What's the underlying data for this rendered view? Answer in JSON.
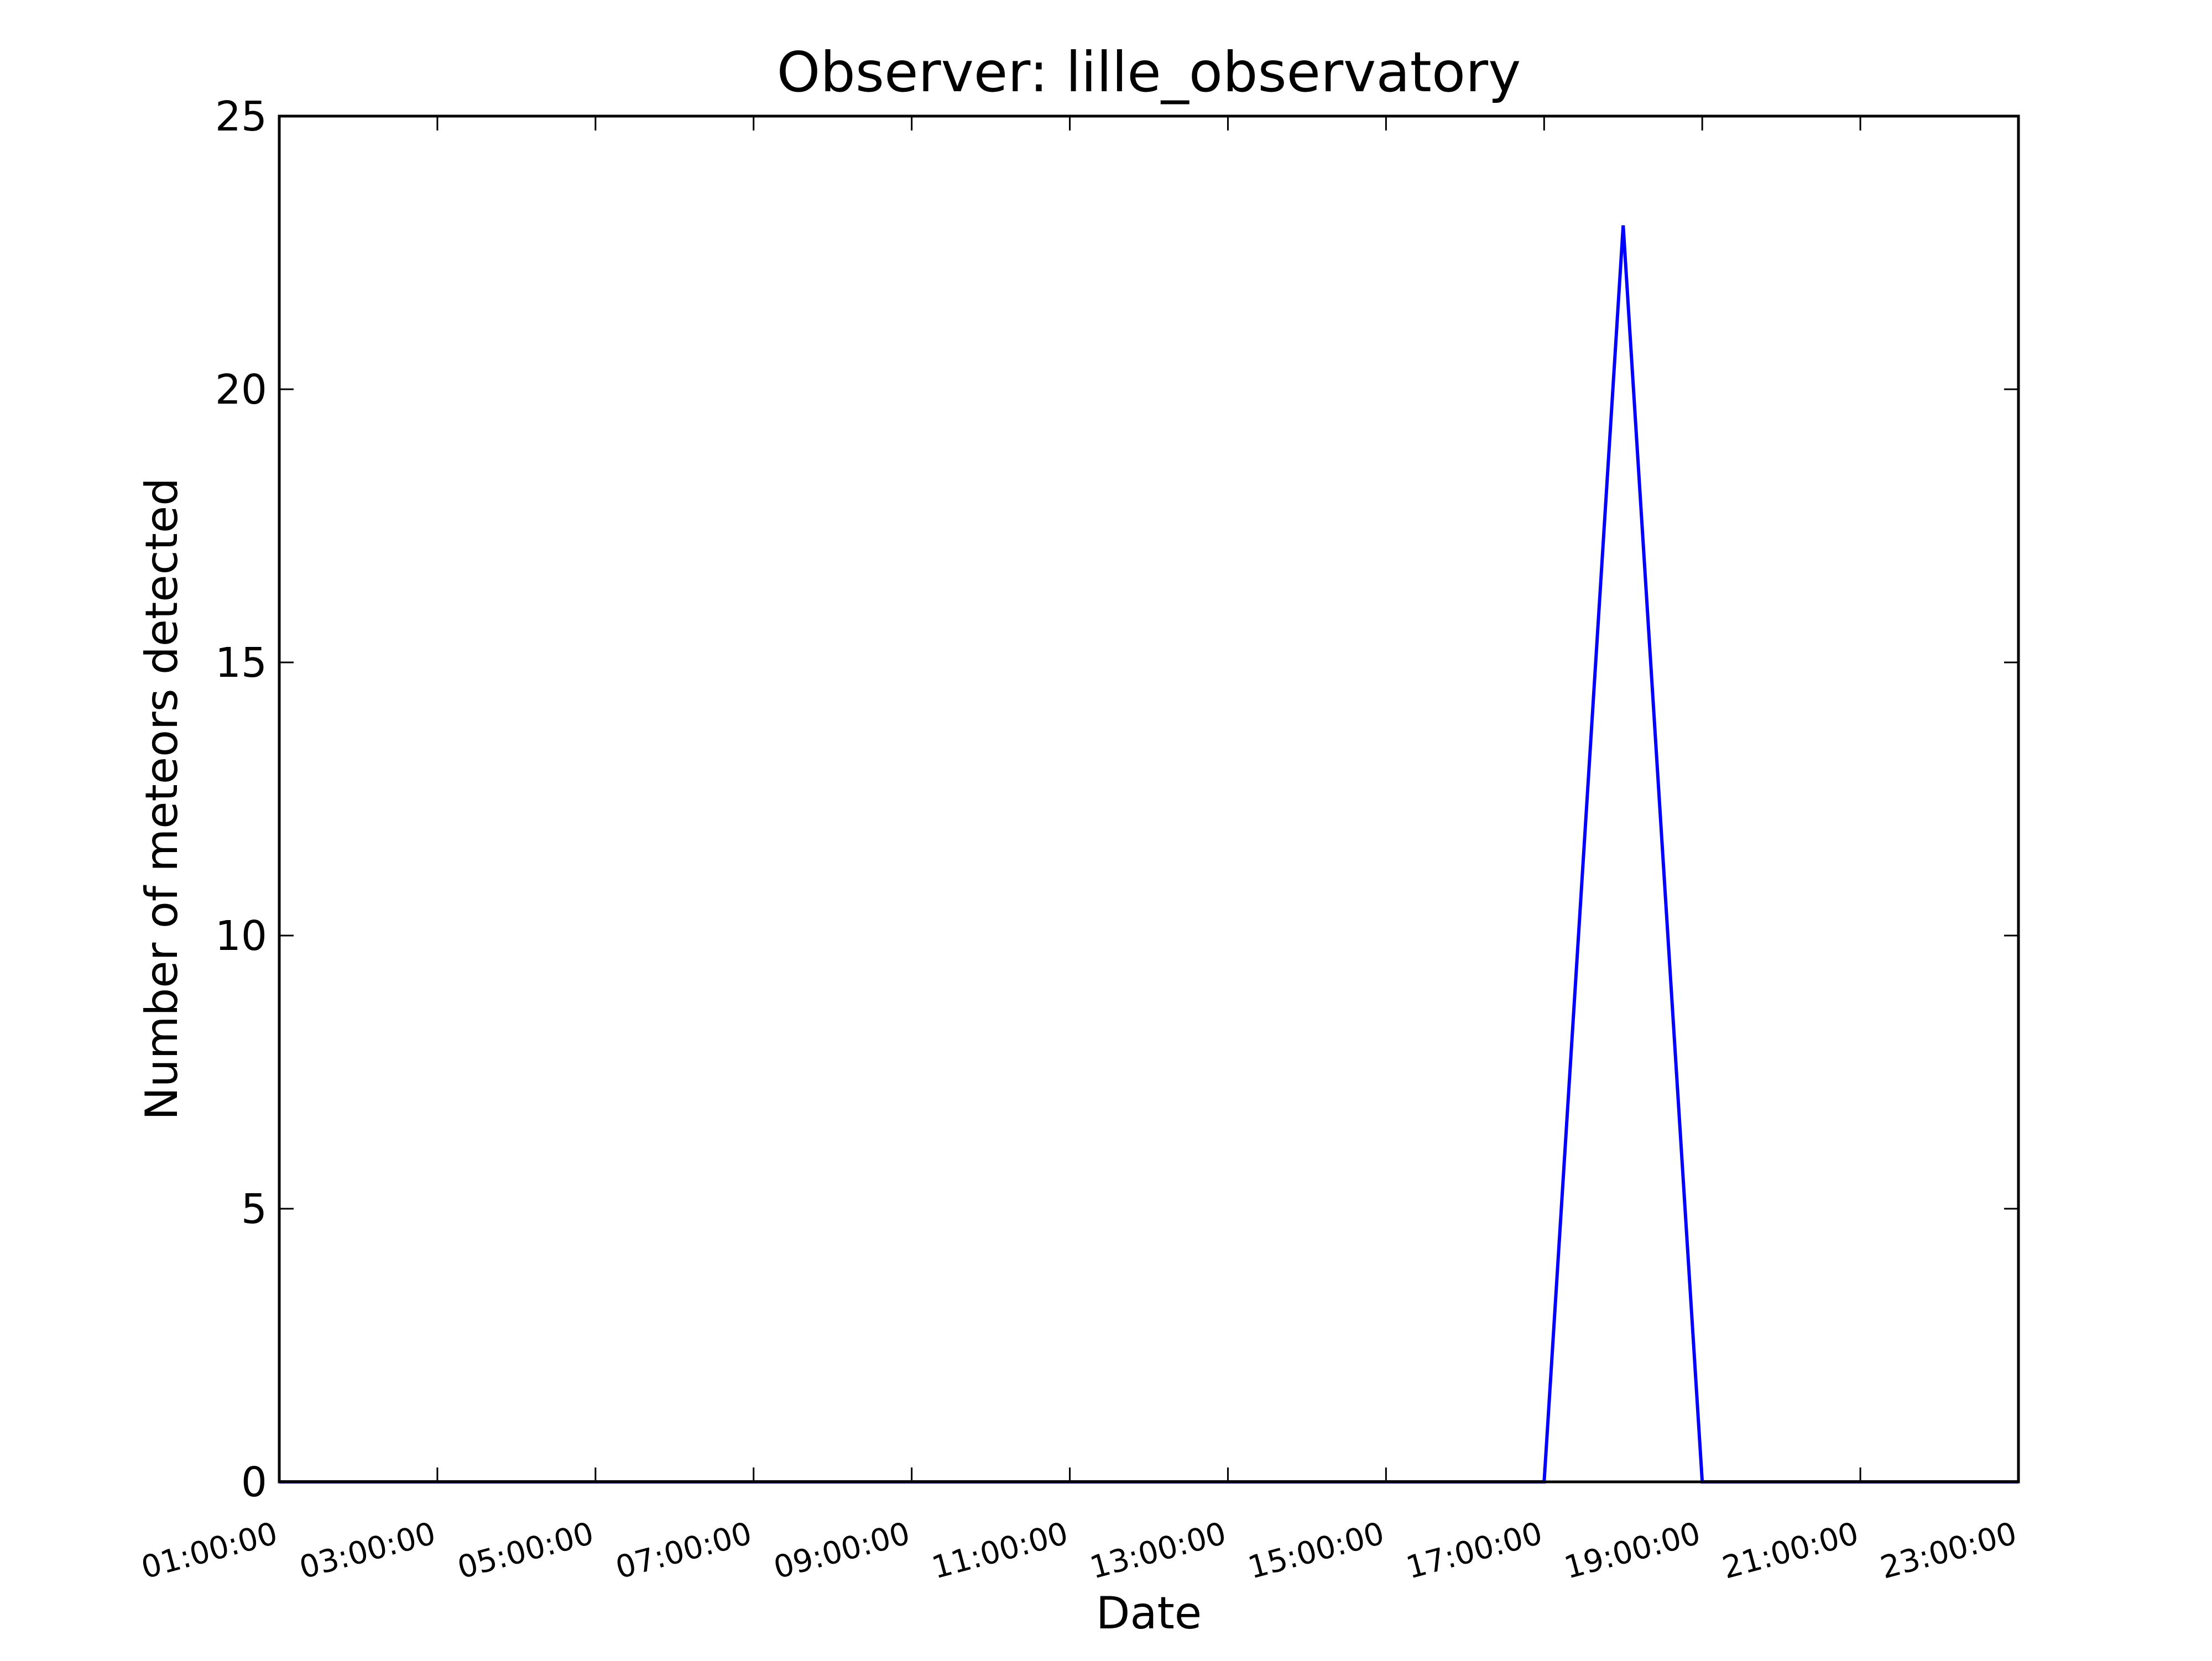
{
  "chart_data": {
    "type": "line",
    "title": "Observer: lille_observatory",
    "xlabel": "Date",
    "ylabel": "Number of meteors detected",
    "x_tick_labels": [
      "01:00:00",
      "03:00:00",
      "05:00:00",
      "07:00:00",
      "09:00:00",
      "11:00:00",
      "13:00:00",
      "15:00:00",
      "17:00:00",
      "19:00:00",
      "21:00:00",
      "23:00:00"
    ],
    "y_tick_labels": [
      "0",
      "5",
      "10",
      "15",
      "20",
      "25"
    ],
    "xlim": [
      "01:00:00",
      "23:00:00"
    ],
    "ylim": [
      0,
      25
    ],
    "grid": false,
    "series": [
      {
        "color": "#0000ff",
        "x": [
          "01:00:00",
          "02:00:00",
          "03:00:00",
          "04:00:00",
          "05:00:00",
          "06:00:00",
          "07:00:00",
          "08:00:00",
          "09:00:00",
          "10:00:00",
          "11:00:00",
          "12:00:00",
          "13:00:00",
          "14:00:00",
          "15:00:00",
          "16:00:00",
          "17:00:00",
          "18:00:00",
          "19:00:00",
          "20:00:00",
          "21:00:00",
          "22:00:00",
          "23:00:00"
        ],
        "y": [
          0,
          0,
          0,
          0,
          0,
          0,
          0,
          0,
          0,
          0,
          0,
          0,
          0,
          0,
          0,
          0,
          0,
          23,
          0,
          0,
          0,
          0,
          0
        ]
      }
    ]
  }
}
